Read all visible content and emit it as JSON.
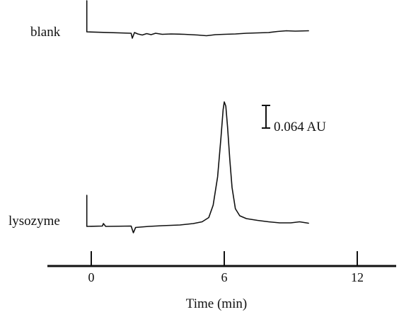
{
  "chart_data": {
    "type": "line",
    "title": "",
    "xlabel": "Time (min)",
    "ylabel": "",
    "xlim": [
      -3.3,
      13.2
    ],
    "xticks": [
      0,
      6,
      12
    ],
    "xtick_labels": [
      "0",
      "6",
      "12"
    ],
    "y_unit": "AU",
    "scale_bar": {
      "value": 0.064,
      "label": "0.064 AU"
    },
    "grid": false,
    "legend": "none",
    "series": [
      {
        "name": "blank",
        "baseline": 0,
        "points": [
          [
            -0.2,
            0.088
          ],
          [
            -0.2,
            0.0
          ],
          [
            1.8,
            -0.004
          ],
          [
            1.85,
            -0.018
          ],
          [
            1.95,
            -0.002
          ],
          [
            2.1,
            -0.006
          ],
          [
            2.3,
            -0.009
          ],
          [
            2.5,
            -0.005
          ],
          [
            2.7,
            -0.008
          ],
          [
            2.9,
            -0.004
          ],
          [
            3.2,
            -0.007
          ],
          [
            3.6,
            -0.006
          ],
          [
            4.2,
            -0.007
          ],
          [
            4.8,
            -0.009
          ],
          [
            5.2,
            -0.011
          ],
          [
            5.6,
            -0.008
          ],
          [
            6.0,
            -0.007
          ],
          [
            6.5,
            -0.006
          ],
          [
            7.0,
            -0.004
          ],
          [
            7.5,
            -0.003
          ],
          [
            8.0,
            -0.002
          ],
          [
            8.4,
            0.001
          ],
          [
            8.8,
            0.003
          ],
          [
            9.2,
            0.002
          ],
          [
            9.8,
            0.003
          ]
        ]
      },
      {
        "name": "lysozyme",
        "baseline": 0,
        "points": [
          [
            -0.2,
            0.088
          ],
          [
            -0.2,
            0.0
          ],
          [
            0.5,
            0.001
          ],
          [
            0.55,
            0.008
          ],
          [
            0.65,
            0.0
          ],
          [
            1.8,
            0.001
          ],
          [
            1.85,
            -0.009
          ],
          [
            1.9,
            -0.018
          ],
          [
            2.0,
            -0.003
          ],
          [
            2.6,
            0.0
          ],
          [
            3.2,
            0.002
          ],
          [
            4.0,
            0.004
          ],
          [
            4.6,
            0.008
          ],
          [
            5.0,
            0.013
          ],
          [
            5.3,
            0.025
          ],
          [
            5.5,
            0.06
          ],
          [
            5.7,
            0.14
          ],
          [
            5.85,
            0.25
          ],
          [
            5.95,
            0.33
          ],
          [
            6.0,
            0.352
          ],
          [
            6.07,
            0.34
          ],
          [
            6.15,
            0.28
          ],
          [
            6.25,
            0.19
          ],
          [
            6.35,
            0.11
          ],
          [
            6.5,
            0.05
          ],
          [
            6.7,
            0.03
          ],
          [
            7.0,
            0.022
          ],
          [
            7.5,
            0.017
          ],
          [
            8.0,
            0.013
          ],
          [
            8.5,
            0.01
          ],
          [
            9.0,
            0.01
          ],
          [
            9.4,
            0.013
          ],
          [
            9.8,
            0.009
          ]
        ]
      }
    ]
  }
}
